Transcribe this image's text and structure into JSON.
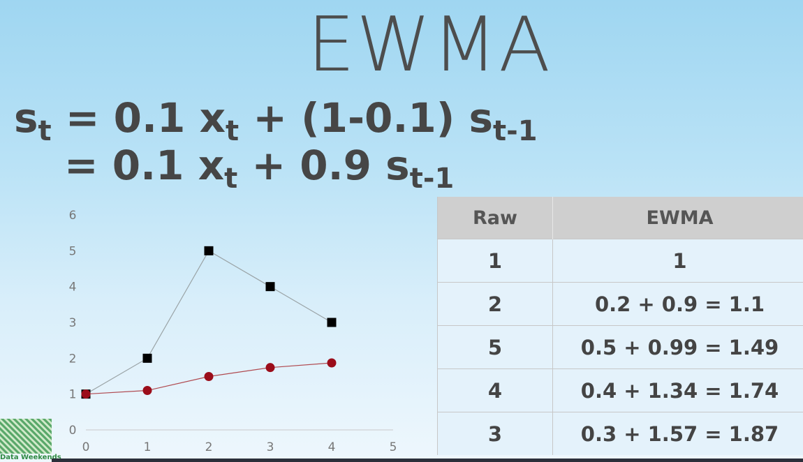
{
  "slide": {
    "title": "EWMA",
    "formula_line1": {
      "s": "s",
      "s_sub": "t",
      "mid": " = 0.1 x",
      "x_sub": "t",
      "tail": " + (1-0.1) s",
      "tail_sub": "t-1"
    },
    "formula_line2": {
      "mid": "= 0.1 x",
      "x_sub": "t",
      "tail": " + 0.9 s",
      "tail_sub": "t-1"
    },
    "logo_text": "Data Weekends"
  },
  "table": {
    "headers": [
      "Raw",
      "EWMA"
    ],
    "rows": [
      [
        "1",
        "1"
      ],
      [
        "2",
        "0.2 + 0.9 = 1.1"
      ],
      [
        "5",
        "0.5 + 0.99 = 1.49"
      ],
      [
        "4",
        "0.4 + 1.34 = 1.74"
      ],
      [
        "3",
        "0.3 + 1.57 = 1.87"
      ]
    ]
  },
  "chart_data": {
    "type": "line",
    "x": [
      0,
      1,
      2,
      3,
      4
    ],
    "series": [
      {
        "values": [
          1,
          2,
          5,
          4,
          3
        ],
        "color": "#000000",
        "marker": "square",
        "line_color": "#9aa3a6"
      },
      {
        "values": [
          1,
          1.1,
          1.49,
          1.74,
          1.87
        ],
        "color": "#9b0d1a",
        "marker": "circle",
        "line_color": "#b04a50"
      }
    ],
    "xlim": [
      0,
      5
    ],
    "ylim": [
      0,
      6
    ],
    "xticks": [
      "0",
      "1",
      "2",
      "3",
      "4",
      "5"
    ],
    "yticks": [
      "0",
      "1",
      "2",
      "3",
      "4",
      "5",
      "6"
    ],
    "grid": false
  }
}
